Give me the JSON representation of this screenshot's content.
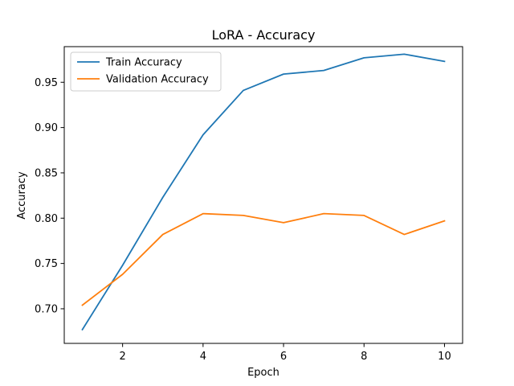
{
  "chart_data": {
    "type": "line",
    "title": "LoRA - Accuracy",
    "xlabel": "Epoch",
    "ylabel": "Accuracy",
    "x": [
      1,
      2,
      3,
      4,
      5,
      6,
      7,
      8,
      9,
      10
    ],
    "series": [
      {
        "name": "Train Accuracy",
        "color": "#1f77b4",
        "values": [
          0.677,
          0.748,
          0.823,
          0.892,
          0.941,
          0.959,
          0.963,
          0.977,
          0.981,
          0.973
        ]
      },
      {
        "name": "Validation Accuracy",
        "color": "#ff7f0e",
        "values": [
          0.704,
          0.738,
          0.782,
          0.805,
          0.803,
          0.795,
          0.805,
          0.803,
          0.782,
          0.797
        ]
      }
    ],
    "xlim": [
      0.55,
      10.45
    ],
    "ylim": [
      0.6618,
      0.9893
    ],
    "xticks": [
      "2",
      "4",
      "6",
      "8",
      "10"
    ],
    "yticks": [
      "0.70",
      "0.75",
      "0.80",
      "0.85",
      "0.90",
      "0.95"
    ],
    "grid": false,
    "legend_position": "top-left"
  }
}
